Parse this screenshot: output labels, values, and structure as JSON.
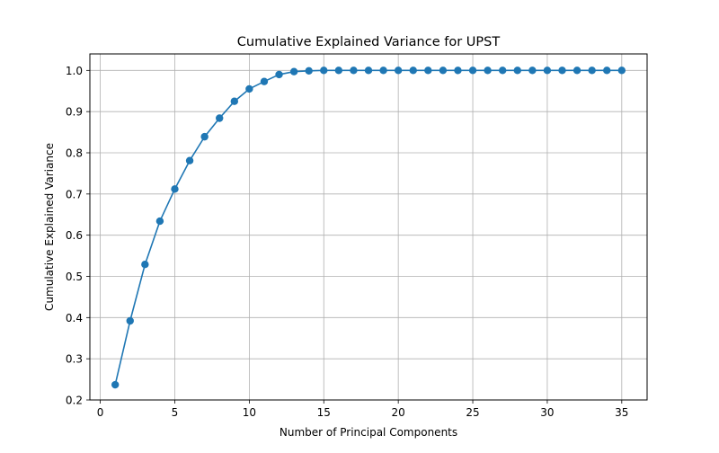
{
  "chart_data": {
    "type": "line",
    "title": "Cumulative Explained Variance for UPST",
    "xlabel": "Number of Principal Components",
    "ylabel": "Cumulative Explained Variance",
    "xlim": [
      -0.7,
      36.7
    ],
    "ylim": [
      0.2,
      1.04
    ],
    "xticks": [
      0,
      5,
      10,
      15,
      20,
      25,
      30,
      35
    ],
    "yticks": [
      0.2,
      0.3,
      0.4,
      0.5,
      0.6,
      0.7,
      0.8,
      0.9,
      1.0
    ],
    "xtick_labels": [
      "0",
      "5",
      "10",
      "15",
      "20",
      "25",
      "30",
      "35"
    ],
    "ytick_labels": [
      "0.2",
      "0.3",
      "0.4",
      "0.5",
      "0.6",
      "0.7",
      "0.8",
      "0.9",
      "1.0"
    ],
    "grid": true,
    "colors": {
      "line": "#1f77b4",
      "grid": "#b0b0b0",
      "axes": "#000000"
    },
    "marker": "circle",
    "series": [
      {
        "x": [
          1,
          2,
          3,
          4,
          5,
          6,
          7,
          8,
          9,
          10,
          11,
          12,
          13,
          14,
          15,
          16,
          17,
          18,
          19,
          20,
          21,
          22,
          23,
          24,
          25,
          26,
          27,
          28,
          29,
          30,
          31,
          32,
          33,
          34,
          35
        ],
        "values": [
          0.237,
          0.392,
          0.529,
          0.634,
          0.712,
          0.781,
          0.839,
          0.884,
          0.925,
          0.955,
          0.973,
          0.99,
          0.997,
          0.999,
          1.0,
          1.0,
          1.0,
          1.0,
          1.0,
          1.0,
          1.0,
          1.0,
          1.0,
          1.0,
          1.0,
          1.0,
          1.0,
          1.0,
          1.0,
          1.0,
          1.0,
          1.0,
          1.0,
          1.0,
          1.0
        ]
      }
    ]
  }
}
